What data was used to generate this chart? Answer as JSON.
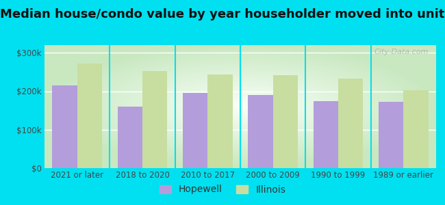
{
  "title": "Median house/condo value by year householder moved into unit",
  "categories": [
    "2021 or later",
    "2018 to 2020",
    "2010 to 2017",
    "2000 to 2009",
    "1990 to 1999",
    "1989 or earlier"
  ],
  "hopewell_values": [
    215000,
    160000,
    195000,
    190000,
    175000,
    172000
  ],
  "illinois_values": [
    272000,
    252000,
    244000,
    241000,
    232000,
    202000
  ],
  "hopewell_color": "#b39ddb",
  "illinois_color": "#c8dda0",
  "background_outer": "#00e0f0",
  "background_inner_center": "#f8fff8",
  "background_inner_edge": "#c8e8c0",
  "yticks": [
    0,
    100000,
    200000,
    300000
  ],
  "ytick_labels": [
    "$0",
    "$100k",
    "$200k",
    "$300k"
  ],
  "ylim": [
    0,
    320000
  ],
  "bar_width": 0.38,
  "title_fontsize": 13,
  "tick_fontsize": 8.5,
  "legend_fontsize": 10,
  "watermark": "City-Data.com"
}
